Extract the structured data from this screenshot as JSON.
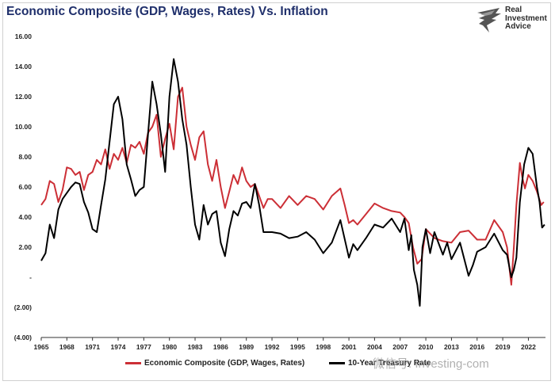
{
  "header": {
    "title": "Economic Composite (GDP, Wages, Rates) Vs. Inflation",
    "logo_lines": [
      "Real",
      "Investment",
      "Advice"
    ]
  },
  "watermark": "微信号: Investing-com",
  "colors": {
    "composite": "#cc2f36",
    "treasury": "#000000",
    "title": "#1f2f6b"
  },
  "chart_data": {
    "type": "line",
    "title": "Economic Composite (GDP, Wages, Rates) Vs. Inflation",
    "xlabel": "",
    "ylabel": "",
    "xlim": [
      1965,
      2024
    ],
    "ylim": [
      -4,
      16
    ],
    "y_ticks": [
      -4,
      -2,
      0,
      2,
      4,
      6,
      8,
      10,
      12,
      14,
      16
    ],
    "y_tick_labels": [
      "(4.00)",
      "(2.00)",
      "-",
      "2.00",
      "4.00",
      "6.00",
      "8.00",
      "10.00",
      "12.00",
      "14.00",
      "16.00"
    ],
    "x_ticks": [
      1965,
      1968,
      1971,
      1974,
      1977,
      1980,
      1983,
      1986,
      1989,
      1992,
      1995,
      1998,
      2001,
      2004,
      2007,
      2010,
      2013,
      2016,
      2019,
      2022
    ],
    "x_tick_labels": [
      "1965",
      "1968",
      "1971",
      "1974",
      "1977",
      "1980",
      "1983",
      "1986",
      "1989",
      "1992",
      "1995",
      "1998",
      "2001",
      "2004",
      "2007",
      "2010",
      "2013",
      "2016",
      "2019",
      "2022"
    ],
    "grid": false,
    "legend_position": "bottom",
    "series": [
      {
        "name": "Economic Composite (GDP, Wages, Rates)",
        "color": "#cc2f36",
        "x": [
          1965,
          1965.5,
          1966,
          1966.5,
          1967,
          1967.5,
          1968,
          1968.5,
          1969,
          1969.5,
          1970,
          1970.5,
          1971,
          1971.5,
          1972,
          1972.5,
          1973,
          1973.5,
          1974,
          1974.5,
          1975,
          1975.5,
          1976,
          1976.5,
          1977,
          1977.5,
          1978,
          1978.5,
          1979,
          1979.5,
          1980,
          1980.5,
          1981,
          1981.5,
          1982,
          1982.5,
          1983,
          1983.5,
          1984,
          1984.5,
          1985,
          1985.5,
          1986,
          1986.5,
          1987,
          1987.5,
          1988,
          1988.5,
          1989,
          1989.5,
          1990,
          1990.5,
          1991,
          1991.5,
          1992,
          1993,
          1994,
          1995,
          1996,
          1997,
          1998,
          1999,
          2000,
          2000.5,
          2001,
          2001.5,
          2002,
          2003,
          2004,
          2005,
          2006,
          2007,
          2007.5,
          2008,
          2008.5,
          2009,
          2009.5,
          2010,
          2010.5,
          2011,
          2012,
          2013,
          2014,
          2015,
          2016,
          2017,
          2018,
          2019,
          2019.5,
          2020,
          2020.3,
          2020.6,
          2021,
          2021.3,
          2021.6,
          2022,
          2022.5,
          2023,
          2023.5,
          2023.8
        ],
        "values": [
          4.8,
          5.2,
          6.4,
          6.2,
          5.0,
          5.8,
          7.3,
          7.2,
          6.8,
          7.0,
          5.8,
          6.8,
          7.0,
          7.8,
          7.5,
          8.5,
          7.2,
          8.2,
          7.8,
          8.6,
          7.6,
          8.8,
          8.6,
          9.0,
          8.2,
          9.6,
          10.0,
          10.8,
          8.0,
          9.2,
          10.2,
          8.5,
          12.0,
          12.6,
          10.0,
          8.8,
          7.8,
          9.3,
          9.7,
          7.5,
          6.4,
          7.8,
          6.0,
          4.6,
          5.7,
          6.8,
          6.2,
          7.3,
          6.4,
          6.0,
          6.2,
          5.4,
          4.6,
          5.2,
          5.2,
          4.6,
          5.4,
          4.8,
          5.4,
          5.2,
          4.5,
          5.4,
          5.9,
          4.8,
          3.6,
          3.8,
          3.5,
          4.2,
          4.9,
          4.6,
          4.4,
          4.3,
          4.0,
          3.6,
          2.0,
          0.9,
          1.2,
          3.2,
          2.9,
          2.6,
          2.4,
          2.3,
          3.0,
          3.1,
          2.5,
          2.5,
          3.8,
          3.0,
          2.0,
          -0.5,
          2.0,
          4.8,
          7.6,
          6.6,
          5.9,
          6.8,
          6.4,
          5.7,
          4.8,
          5.0
        ]
      },
      {
        "name": "10-Year Treasury Rate",
        "color": "#000000",
        "x": [
          1965,
          1965.5,
          1966,
          1966.5,
          1967,
          1967.5,
          1968,
          1968.5,
          1969,
          1969.5,
          1970,
          1970.5,
          1971,
          1971.5,
          1972,
          1972.5,
          1973,
          1973.5,
          1974,
          1974.5,
          1975,
          1975.5,
          1976,
          1976.5,
          1977,
          1977.5,
          1978,
          1978.5,
          1979,
          1979.5,
          1980,
          1980.5,
          1981,
          1981.5,
          1982,
          1982.5,
          1983,
          1983.5,
          1984,
          1984.5,
          1985,
          1985.5,
          1986,
          1986.5,
          1987,
          1987.5,
          1988,
          1988.5,
          1989,
          1989.5,
          1990,
          1990.5,
          1991,
          1992,
          1993,
          1994,
          1995,
          1996,
          1997,
          1998,
          1999,
          2000,
          2001,
          2001.5,
          2002,
          2003,
          2004,
          2005,
          2006,
          2007,
          2007.5,
          2008,
          2008.3,
          2008.6,
          2009,
          2009.3,
          2009.6,
          2010,
          2010.5,
          2011,
          2012,
          2012.5,
          2013,
          2014,
          2015,
          2015.5,
          2016,
          2017,
          2018,
          2019,
          2019.5,
          2020,
          2020.3,
          2020.6,
          2021,
          2021.5,
          2022,
          2022.5,
          2023,
          2023.3,
          2023.6,
          2023.9
        ],
        "values": [
          1.1,
          1.6,
          3.5,
          2.6,
          4.5,
          5.2,
          5.6,
          6.0,
          6.3,
          6.2,
          5.0,
          4.3,
          3.2,
          3.0,
          4.8,
          6.5,
          9.0,
          11.5,
          12.0,
          10.5,
          7.5,
          6.5,
          5.4,
          5.8,
          6.0,
          9.5,
          13.0,
          11.5,
          9.5,
          7.0,
          12.0,
          14.5,
          13.0,
          10.5,
          8.8,
          6.0,
          3.5,
          2.5,
          4.8,
          3.5,
          4.2,
          4.4,
          2.3,
          1.4,
          3.2,
          4.4,
          4.1,
          4.9,
          5.0,
          4.6,
          6.2,
          4.8,
          3.0,
          3.0,
          2.9,
          2.6,
          2.7,
          3.0,
          2.5,
          1.6,
          2.3,
          3.8,
          1.3,
          2.2,
          1.8,
          2.6,
          3.5,
          3.3,
          3.9,
          3.0,
          3.9,
          1.8,
          2.8,
          0.5,
          -0.5,
          -1.9,
          2.0,
          3.2,
          1.6,
          3.0,
          1.5,
          2.3,
          1.2,
          2.3,
          0.1,
          0.8,
          1.7,
          2.0,
          2.9,
          1.8,
          1.5,
          0.0,
          0.5,
          1.3,
          5.0,
          7.5,
          8.6,
          8.2,
          6.0,
          5.0,
          3.3,
          3.5
        ]
      }
    ]
  }
}
